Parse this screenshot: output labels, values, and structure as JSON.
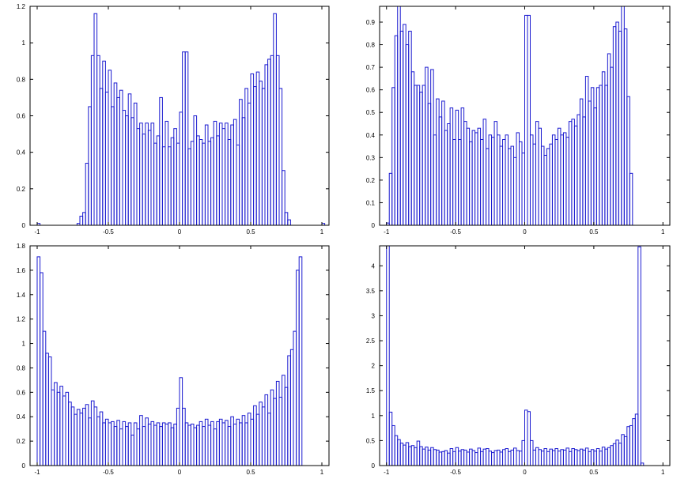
{
  "chart_data": [
    {
      "type": "bar",
      "xlim": [
        -1.05,
        1.05
      ],
      "ylim": [
        0,
        1.2
      ],
      "xticks": [
        "-1",
        "-0.5",
        "0",
        "0.5",
        "1"
      ],
      "yticks": [
        "0",
        "0.2",
        "0.4",
        "0.6",
        "0.8",
        "1",
        "1.2"
      ],
      "bin_width": 0.02,
      "x_start": -1.0,
      "values": [
        0.01,
        0,
        0,
        0,
        0,
        0,
        0,
        0,
        0,
        0,
        0,
        0,
        0,
        0,
        0.01,
        0.05,
        0.07,
        0.34,
        0.65,
        0.93,
        1.16,
        0.93,
        0.75,
        0.9,
        0.73,
        0.85,
        0.65,
        0.78,
        0.7,
        0.74,
        0.63,
        0.6,
        0.72,
        0.59,
        0.67,
        0.53,
        0.56,
        0.5,
        0.56,
        0.52,
        0.56,
        0.45,
        0.49,
        0.7,
        0.43,
        0.57,
        0.43,
        0.48,
        0.53,
        0.45,
        0.62,
        0.95,
        0.95,
        0.42,
        0.46,
        0.6,
        0.49,
        0.47,
        0.45,
        0.55,
        0.46,
        0.48,
        0.57,
        0.49,
        0.56,
        0.53,
        0.56,
        0.47,
        0.55,
        0.58,
        0.44,
        0.69,
        0.59,
        0.75,
        0.67,
        0.83,
        0.76,
        0.84,
        0.79,
        0.75,
        0.88,
        0.91,
        0.93,
        1.16,
        0.93,
        0.75,
        0.3,
        0.07,
        0.03,
        0,
        0,
        0,
        0,
        0,
        0,
        0,
        0,
        0,
        0,
        0,
        0.01
      ]
    },
    {
      "type": "bar",
      "xlim": [
        -1.05,
        1.05
      ],
      "ylim": [
        0,
        0.97
      ],
      "xticks": [
        "-1",
        "-0.5",
        "0",
        "0.5",
        "1"
      ],
      "yticks": [
        "0",
        "0.1",
        "0.2",
        "0.3",
        "0.4",
        "0.5",
        "0.6",
        "0.7",
        "0.8",
        "0.9"
      ],
      "bin_width": 0.02,
      "x_start": -1.0,
      "values": [
        0.01,
        0.23,
        0.61,
        0.84,
        0.97,
        0.86,
        0.89,
        0.8,
        0.86,
        0.68,
        0.62,
        0.62,
        0.59,
        0.62,
        0.7,
        0.54,
        0.69,
        0.4,
        0.56,
        0.48,
        0.55,
        0.42,
        0.45,
        0.52,
        0.38,
        0.51,
        0.38,
        0.52,
        0.46,
        0.43,
        0.37,
        0.42,
        0.41,
        0.43,
        0.38,
        0.47,
        0.34,
        0.4,
        0.39,
        0.46,
        0.4,
        0.35,
        0.38,
        0.4,
        0.34,
        0.35,
        0.3,
        0.41,
        0.37,
        0.32,
        0.93,
        0.93,
        0.4,
        0.36,
        0.46,
        0.43,
        0.35,
        0.31,
        0.34,
        0.36,
        0.4,
        0.38,
        0.43,
        0.4,
        0.41,
        0.39,
        0.46,
        0.47,
        0.44,
        0.49,
        0.56,
        0.48,
        0.66,
        0.55,
        0.61,
        0.52,
        0.61,
        0.62,
        0.68,
        0.62,
        0.76,
        0.7,
        0.88,
        0.9,
        0.86,
        0.97,
        0.87,
        0.57,
        0.23,
        0,
        0,
        0,
        0,
        0,
        0,
        0,
        0,
        0,
        0,
        0,
        0
      ]
    },
    {
      "type": "bar",
      "xlim": [
        -1.05,
        1.05
      ],
      "ylim": [
        0,
        1.8
      ],
      "xticks": [
        "-1",
        "-0.5",
        "0",
        "0.5",
        "1"
      ],
      "yticks": [
        "0",
        "0.2",
        "0.4",
        "0.6",
        "0.8",
        "1",
        "1.2",
        "1.4",
        "1.6",
        "1.8"
      ],
      "bin_width": 0.02,
      "x_start": -1.0,
      "values": [
        1.71,
        1.58,
        1.1,
        0.92,
        0.89,
        0.62,
        0.68,
        0.6,
        0.65,
        0.57,
        0.6,
        0.52,
        0.48,
        0.42,
        0.46,
        0.43,
        0.47,
        0.5,
        0.39,
        0.53,
        0.48,
        0.4,
        0.44,
        0.35,
        0.38,
        0.35,
        0.36,
        0.32,
        0.37,
        0.3,
        0.36,
        0.32,
        0.35,
        0.25,
        0.35,
        0.3,
        0.41,
        0.32,
        0.39,
        0.34,
        0.36,
        0.33,
        0.35,
        0.32,
        0.35,
        0.34,
        0.35,
        0.31,
        0.34,
        0.47,
        0.72,
        0.47,
        0.35,
        0.33,
        0.34,
        0.31,
        0.33,
        0.36,
        0.32,
        0.38,
        0.33,
        0.36,
        0.3,
        0.36,
        0.38,
        0.35,
        0.37,
        0.32,
        0.4,
        0.34,
        0.38,
        0.35,
        0.41,
        0.35,
        0.43,
        0.38,
        0.49,
        0.42,
        0.52,
        0.48,
        0.58,
        0.43,
        0.62,
        0.55,
        0.69,
        0.56,
        0.74,
        0.64,
        0.9,
        0.95,
        1.1,
        1.6,
        1.71
      ]
    },
    {
      "type": "bar",
      "xlim": [
        -1.05,
        1.05
      ],
      "ylim": [
        0,
        4.4
      ],
      "xticks": [
        "-1",
        "-0.5",
        "0",
        "0.5",
        "1"
      ],
      "yticks": [
        "0",
        "0.5",
        "1",
        "1.5",
        "2",
        "2.5",
        "3",
        "3.5",
        "4"
      ],
      "bin_width": 0.02,
      "x_start": -1.0,
      "values": [
        4.4,
        1.07,
        0.8,
        0.6,
        0.52,
        0.45,
        0.41,
        0.46,
        0.38,
        0.4,
        0.36,
        0.49,
        0.38,
        0.33,
        0.37,
        0.31,
        0.36,
        0.32,
        0.31,
        0.27,
        0.28,
        0.3,
        0.25,
        0.34,
        0.28,
        0.36,
        0.29,
        0.32,
        0.31,
        0.27,
        0.33,
        0.3,
        0.26,
        0.35,
        0.28,
        0.33,
        0.34,
        0.29,
        0.26,
        0.3,
        0.31,
        0.27,
        0.32,
        0.34,
        0.28,
        0.31,
        0.35,
        0.3,
        0.29,
        0.5,
        1.11,
        1.08,
        0.5,
        0.31,
        0.36,
        0.32,
        0.29,
        0.34,
        0.28,
        0.33,
        0.3,
        0.34,
        0.29,
        0.32,
        0.31,
        0.35,
        0.28,
        0.34,
        0.32,
        0.3,
        0.33,
        0.31,
        0.35,
        0.28,
        0.32,
        0.29,
        0.34,
        0.29,
        0.37,
        0.33,
        0.36,
        0.4,
        0.44,
        0.51,
        0.45,
        0.62,
        0.58,
        0.78,
        0.8,
        0.94,
        1.03,
        4.38,
        0.05
      ]
    }
  ]
}
